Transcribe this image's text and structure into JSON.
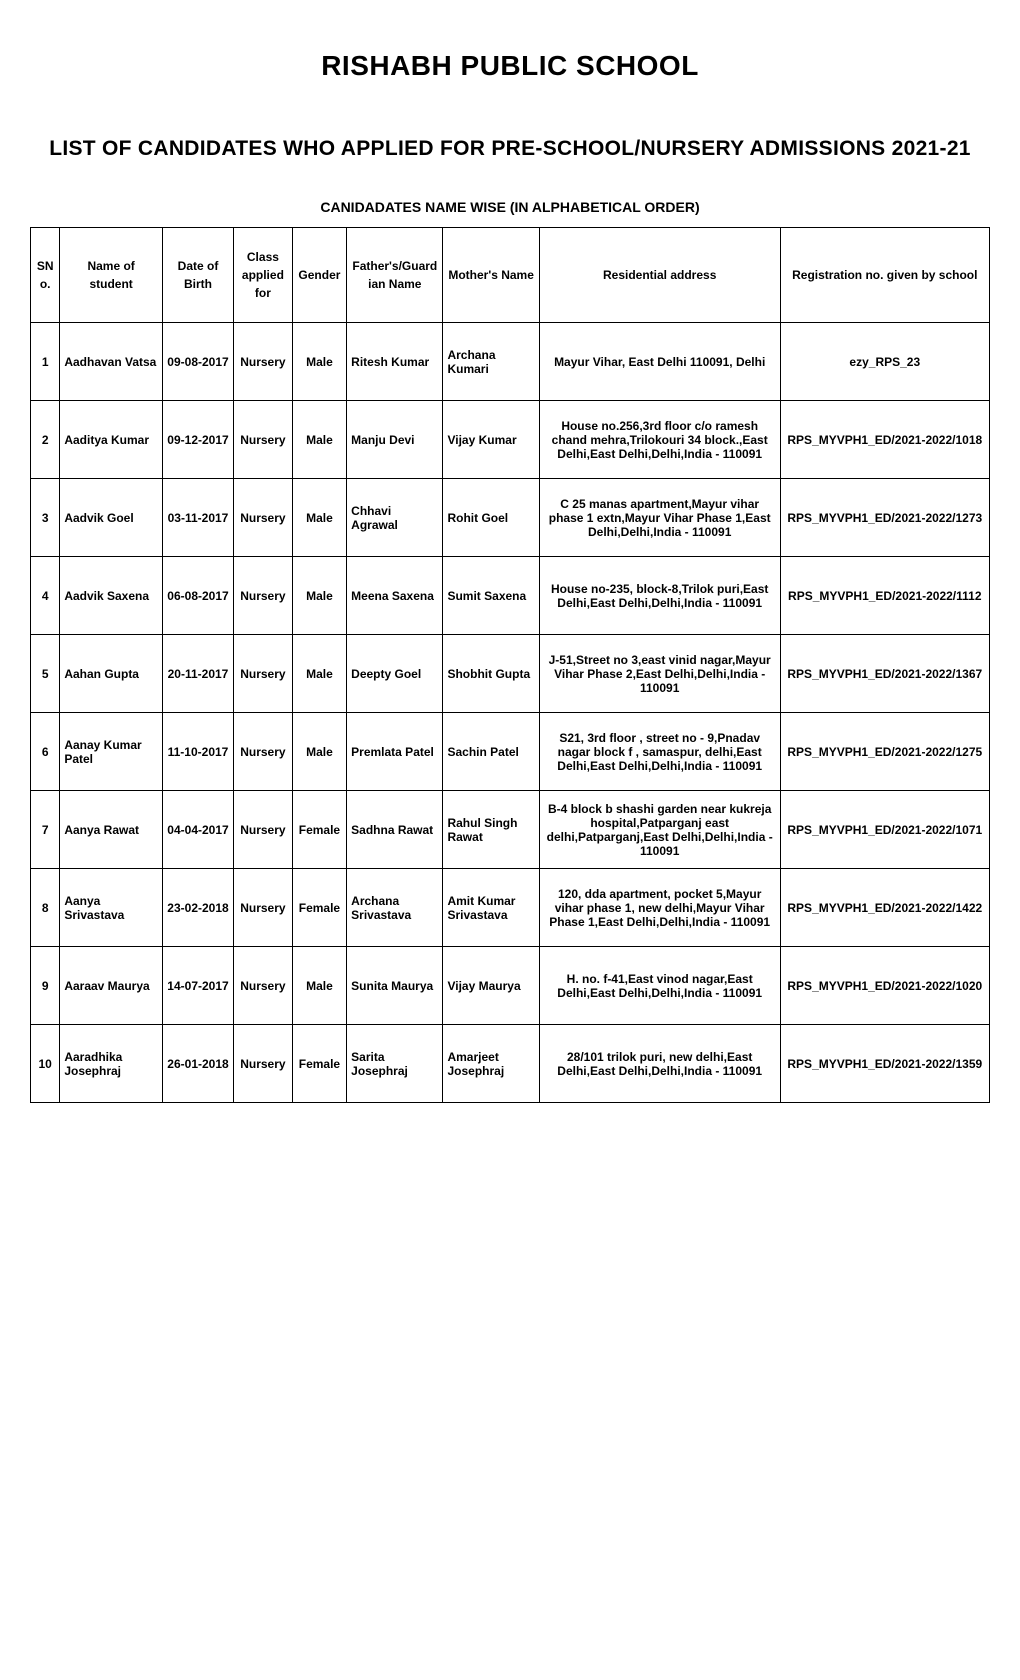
{
  "header": {
    "school_name": "RISHABH PUBLIC SCHOOL",
    "list_title": "LIST OF CANDIDATES WHO APPLIED FOR PRE-SCHOOL/NURSERY ADMISSIONS 2021-21",
    "subtitle": "CANIDADATES NAME WISE (IN ALPHABETICAL ORDER)"
  },
  "table": {
    "columns": [
      {
        "key": "sno",
        "label": "SNo.",
        "class": "col-sno"
      },
      {
        "key": "name",
        "label": "Name of student",
        "class": "col-name"
      },
      {
        "key": "dob",
        "label": "Date of Birth",
        "class": "col-dob"
      },
      {
        "key": "class_applied",
        "label": "Class applied for",
        "class": "col-class"
      },
      {
        "key": "gender",
        "label": "Gender",
        "class": "col-gender"
      },
      {
        "key": "father",
        "label": "Father's/Guardian Name",
        "class": "col-father"
      },
      {
        "key": "mother",
        "label": "Mother's Name",
        "class": "col-mother"
      },
      {
        "key": "address",
        "label": "Residential address",
        "class": "col-address"
      },
      {
        "key": "reg",
        "label": "Registration no. given by school",
        "class": "col-reg"
      }
    ],
    "rows": [
      {
        "sno": "1",
        "name": "Aadhavan Vatsa",
        "dob": "09-08-2017",
        "class_applied": "Nursery",
        "gender": "Male",
        "father": "Ritesh Kumar",
        "mother": "Archana Kumari",
        "address": "Mayur Vihar, East Delhi 110091, Delhi",
        "reg": "ezy_RPS_23"
      },
      {
        "sno": "2",
        "name": "Aaditya Kumar",
        "dob": "09-12-2017",
        "class_applied": "Nursery",
        "gender": "Male",
        "father": "Manju Devi",
        "mother": "Vijay Kumar",
        "address": "House no.256,3rd floor c/o ramesh chand mehra,Trilokouri 34 block.,East Delhi,East Delhi,Delhi,India - 110091",
        "reg": "RPS_MYVPH1_ED/2021-2022/1018"
      },
      {
        "sno": "3",
        "name": "Aadvik Goel",
        "dob": "03-11-2017",
        "class_applied": "Nursery",
        "gender": "Male",
        "father": "Chhavi Agrawal",
        "mother": "Rohit Goel",
        "address": "C 25 manas apartment,Mayur vihar phase 1 extn,Mayur Vihar Phase 1,East Delhi,Delhi,India - 110091",
        "reg": "RPS_MYVPH1_ED/2021-2022/1273"
      },
      {
        "sno": "4",
        "name": "Aadvik Saxena",
        "dob": "06-08-2017",
        "class_applied": "Nursery",
        "gender": "Male",
        "father": "Meena Saxena",
        "mother": "Sumit Saxena",
        "address": "House no-235, block-8,Trilok puri,East Delhi,East Delhi,Delhi,India - 110091",
        "reg": "RPS_MYVPH1_ED/2021-2022/1112"
      },
      {
        "sno": "5",
        "name": "Aahan Gupta",
        "dob": "20-11-2017",
        "class_applied": "Nursery",
        "gender": "Male",
        "father": "Deepty Goel",
        "mother": "Shobhit Gupta",
        "address": "J-51,Street no 3,east vinid nagar,Mayur Vihar Phase 2,East Delhi,Delhi,India - 110091",
        "reg": "RPS_MYVPH1_ED/2021-2022/1367"
      },
      {
        "sno": "6",
        "name": "Aanay Kumar Patel",
        "dob": "11-10-2017",
        "class_applied": "Nursery",
        "gender": "Male",
        "father": "Premlata Patel",
        "mother": "Sachin Patel",
        "address": "S21, 3rd floor , street no - 9,Pnadav nagar block f , samaspur, delhi,East Delhi,East Delhi,Delhi,India - 110091",
        "reg": "RPS_MYVPH1_ED/2021-2022/1275"
      },
      {
        "sno": "7",
        "name": "Aanya Rawat",
        "dob": "04-04-2017",
        "class_applied": "Nursery",
        "gender": "Female",
        "father": "Sadhna Rawat",
        "mother": "Rahul Singh Rawat",
        "address": "B-4 block b shashi garden near kukreja hospital,Patparganj east delhi,Patparganj,East Delhi,Delhi,India - 110091",
        "reg": "RPS_MYVPH1_ED/2021-2022/1071"
      },
      {
        "sno": "8",
        "name": "Aanya Srivastava",
        "dob": "23-02-2018",
        "class_applied": "Nursery",
        "gender": "Female",
        "father": "Archana Srivastava",
        "mother": "Amit Kumar Srivastava",
        "address": "120, dda apartment, pocket 5,Mayur vihar phase 1, new delhi,Mayur Vihar Phase 1,East Delhi,Delhi,India - 110091",
        "reg": "RPS_MYVPH1_ED/2021-2022/1422"
      },
      {
        "sno": "9",
        "name": "Aaraav Maurya",
        "dob": "14-07-2017",
        "class_applied": "Nursery",
        "gender": "Male",
        "father": "Sunita Maurya",
        "mother": "Vijay Maurya",
        "address": "H. no. f-41,East vinod nagar,East Delhi,East Delhi,Delhi,India - 110091",
        "reg": "RPS_MYVPH1_ED/2021-2022/1020"
      },
      {
        "sno": "10",
        "name": "Aaradhika Josephraj",
        "dob": "26-01-2018",
        "class_applied": "Nursery",
        "gender": "Female",
        "father": "Sarita Josephraj",
        "mother": "Amarjeet Josephraj",
        "address": "28/101 trilok puri, new delhi,East Delhi,East Delhi,Delhi,India - 110091",
        "reg": "RPS_MYVPH1_ED/2021-2022/1359"
      }
    ]
  }
}
